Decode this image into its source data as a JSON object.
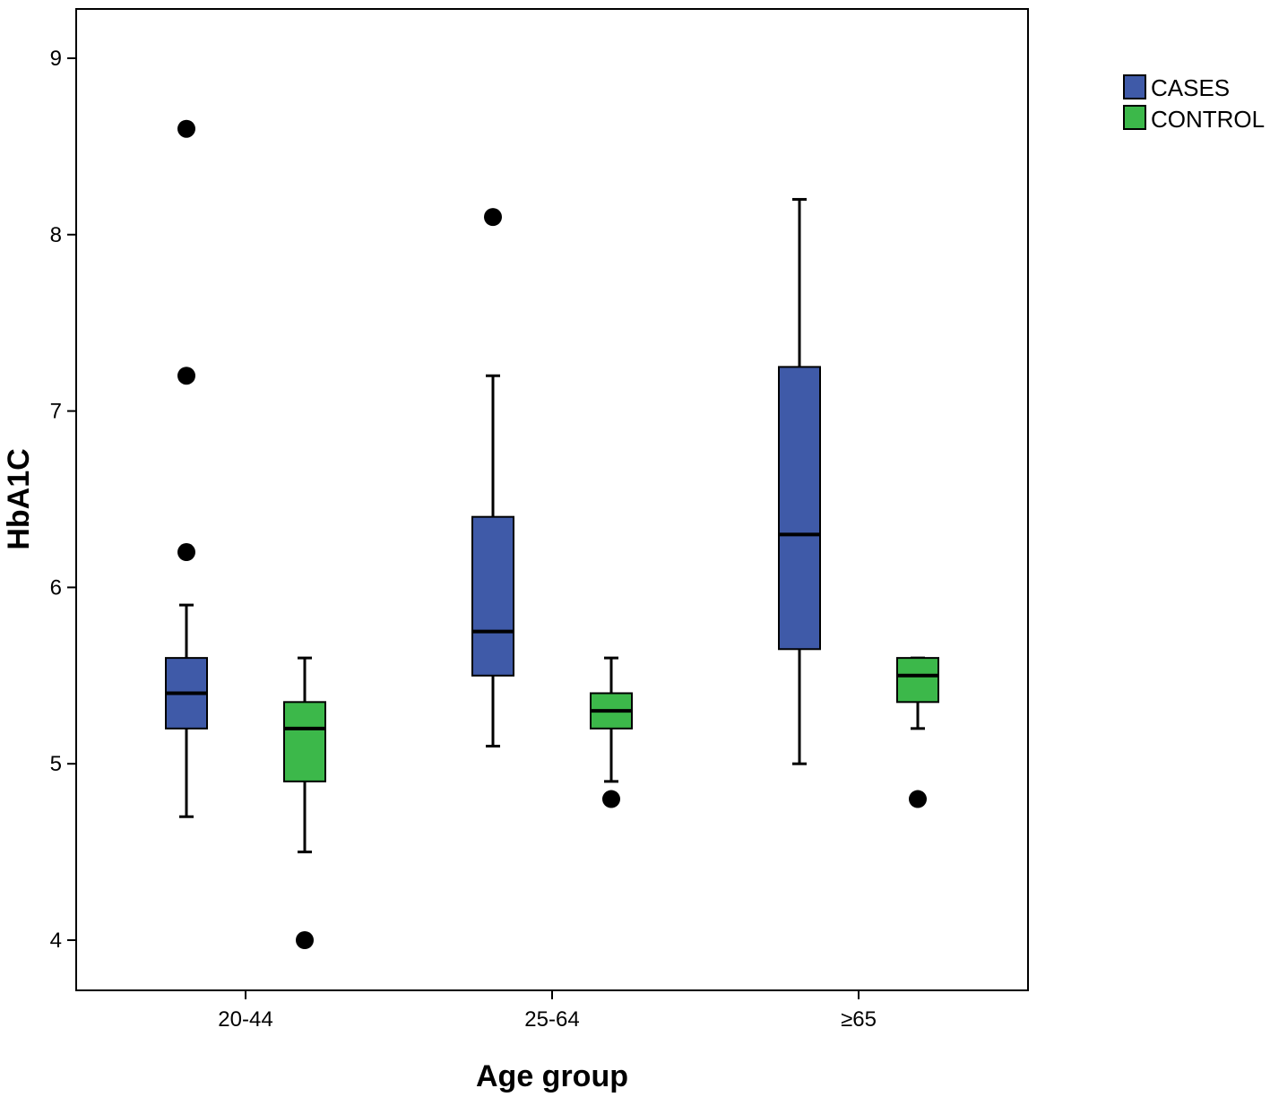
{
  "chart_data": {
    "type": "boxplot",
    "xlabel": "Age group",
    "ylabel": "HbA1C",
    "ylim": [
      3.9,
      9.3
    ],
    "yticks": [
      "4",
      "5",
      "6",
      "7",
      "8",
      "9"
    ],
    "categories": [
      "20-44",
      "25-64",
      "≥65"
    ],
    "legend_position": "top-right",
    "series": [
      {
        "name": "CASES",
        "color": "#3f5aa8",
        "boxes": [
          {
            "min": 4.7,
            "q1": 5.2,
            "median": 5.4,
            "q3": 5.6,
            "max": 5.9,
            "outliers": [
              6.2,
              7.2,
              8.6
            ]
          },
          {
            "min": 5.1,
            "q1": 5.5,
            "median": 5.75,
            "q3": 6.4,
            "max": 7.2,
            "outliers": [
              8.1
            ]
          },
          {
            "min": 5.0,
            "q1": 5.65,
            "median": 6.3,
            "q3": 7.25,
            "max": 8.2,
            "outliers": []
          }
        ]
      },
      {
        "name": "CONTROL",
        "color": "#3cb84a",
        "boxes": [
          {
            "min": 4.5,
            "q1": 4.9,
            "median": 5.2,
            "q3": 5.35,
            "max": 5.6,
            "outliers": [
              4.0
            ]
          },
          {
            "min": 4.9,
            "q1": 5.2,
            "median": 5.3,
            "q3": 5.4,
            "max": 5.6,
            "outliers": [
              4.8
            ]
          },
          {
            "min": 5.2,
            "q1": 5.35,
            "median": 5.5,
            "q3": 5.6,
            "max": 5.6,
            "outliers": [
              4.8
            ]
          }
        ]
      }
    ]
  }
}
